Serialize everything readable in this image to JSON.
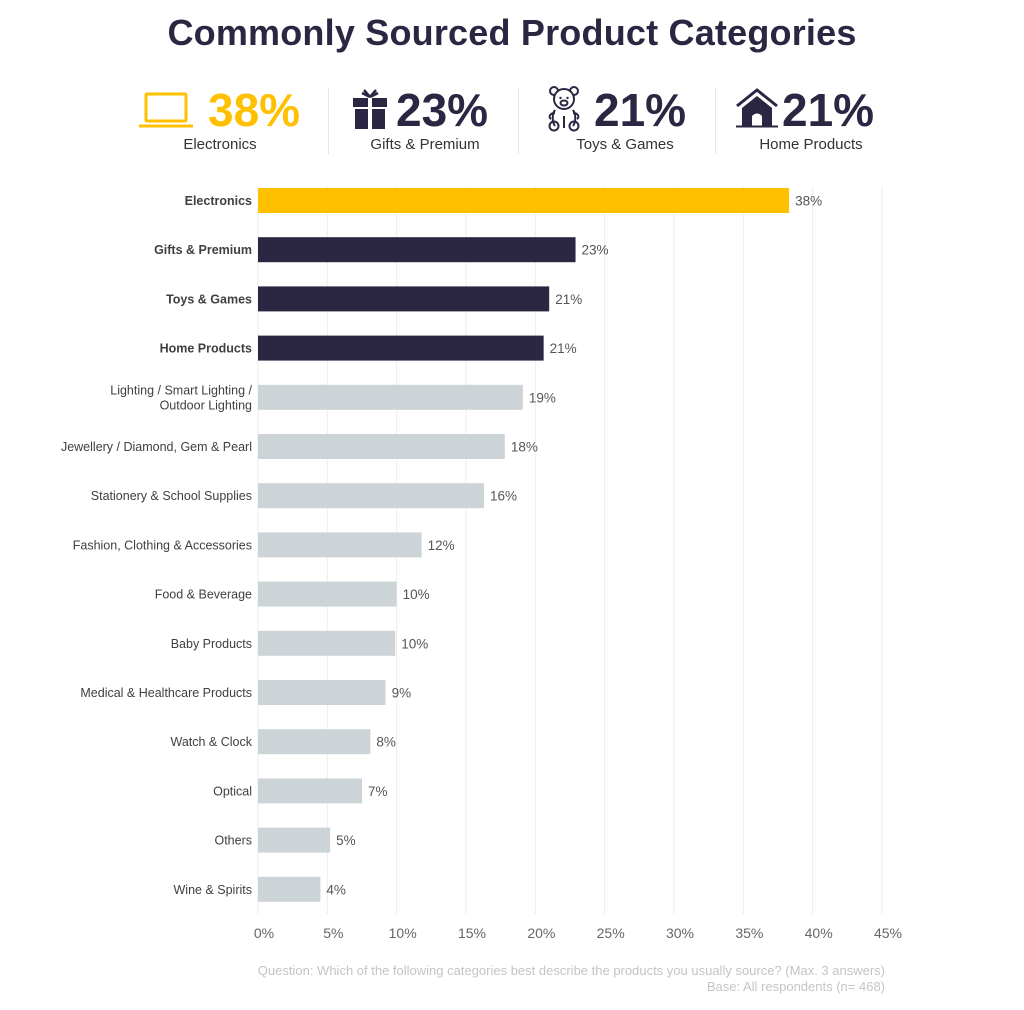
{
  "title": "Commonly Sourced Product Categories",
  "colors": {
    "highlight": "#FFC000",
    "top": "#2B2742",
    "other": "#CDD4D8",
    "grid": "#EDEDED",
    "label_text": "#404040",
    "value_text": "#555555"
  },
  "kpis": [
    {
      "icon": "laptop-icon",
      "value": "38%",
      "label": "Electronics",
      "color": "#FFC000"
    },
    {
      "icon": "gift-icon",
      "value": "23%",
      "label": "Gifts & Premium",
      "color": "#2B2742"
    },
    {
      "icon": "teddy-bear-icon",
      "value": "21%",
      "label": "Toys & Games",
      "color": "#2B2742"
    },
    {
      "icon": "house-icon",
      "value": "21%",
      "label": "Home Products",
      "color": "#2B2742"
    }
  ],
  "chart_data": {
    "type": "bar",
    "orientation": "horizontal",
    "title": "Commonly Sourced Product Categories",
    "xlabel": "",
    "ylabel": "",
    "xlim": [
      0,
      45
    ],
    "x_ticks": [
      "0%",
      "5%",
      "10%",
      "15%",
      "20%",
      "25%",
      "30%",
      "35%",
      "40%",
      "45%"
    ],
    "x_tick_values": [
      0,
      5,
      10,
      15,
      20,
      25,
      30,
      35,
      40,
      45
    ],
    "grid": true,
    "categories": [
      "Electronics",
      "Gifts & Premium",
      "Toys & Games",
      "Home Products",
      "Lighting / Smart Lighting / Outdoor Lighting",
      "Jewellery / Diamond, Gem & Pearl",
      "Stationery & School Supplies",
      "Fashion, Clothing & Accessories",
      "Food & Beverage",
      "Baby Products",
      "Medical & Healthcare Products",
      "Watch & Clock",
      "Optical",
      "Others",
      "Wine & Spirits"
    ],
    "category_lines": [
      [
        "Electronics"
      ],
      [
        "Gifts & Premium"
      ],
      [
        "Toys & Games"
      ],
      [
        "Home Products"
      ],
      [
        "Lighting / Smart Lighting /",
        "Outdoor Lighting"
      ],
      [
        "Jewellery / Diamond, Gem & Pearl"
      ],
      [
        "Stationery & School Supplies"
      ],
      [
        "Fashion, Clothing & Accessories"
      ],
      [
        "Food & Beverage"
      ],
      [
        "Baby Products"
      ],
      [
        "Medical & Healthcare Products"
      ],
      [
        "Watch & Clock"
      ],
      [
        "Optical"
      ],
      [
        "Others"
      ],
      [
        "Wine & Spirits"
      ]
    ],
    "values": [
      38.3,
      22.9,
      21.0,
      20.6,
      19.1,
      17.8,
      16.3,
      11.8,
      10.0,
      9.9,
      9.2,
      8.1,
      7.5,
      5.2,
      4.5
    ],
    "value_labels": [
      "38%",
      "23%",
      "21%",
      "21%",
      "19%",
      "18%",
      "16%",
      "12%",
      "10%",
      "10%",
      "9%",
      "8%",
      "7%",
      "5%",
      "4%"
    ],
    "bar_groups": [
      "highlight",
      "top",
      "top",
      "top",
      "other",
      "other",
      "other",
      "other",
      "other",
      "other",
      "other",
      "other",
      "other",
      "other",
      "other"
    ],
    "bold_labels": [
      true,
      true,
      true,
      true,
      false,
      false,
      false,
      false,
      false,
      false,
      false,
      false,
      false,
      false,
      false
    ]
  },
  "footer": {
    "question": "Question: Which of the following categories best describe the products you usually source? (Max. 3 answers)",
    "base": "Base: All respondents (n= 468)"
  }
}
